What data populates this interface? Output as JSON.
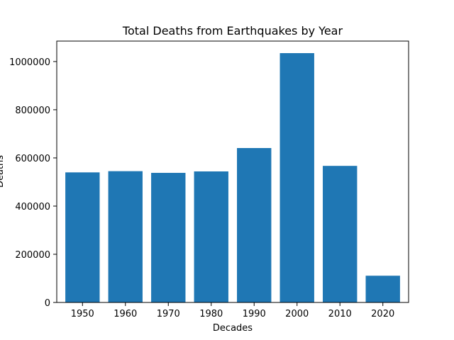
{
  "chart_data": {
    "type": "bar",
    "title": "Total Deaths from Earthquakes by Year",
    "xlabel": "Decades",
    "ylabel": "Deaths",
    "categories": [
      "1950",
      "1960",
      "1970",
      "1980",
      "1990",
      "2000",
      "2010",
      "2020"
    ],
    "values": [
      540000,
      545000,
      538000,
      544000,
      641000,
      1035000,
      567000,
      111000
    ],
    "ylim": [
      0,
      1085000
    ],
    "yticks": [
      0,
      200000,
      400000,
      600000,
      800000,
      1000000
    ],
    "ytick_labels": [
      "0",
      "200000",
      "400000",
      "600000",
      "800000",
      "1000000"
    ],
    "bar_color": "#1f77b4",
    "grid": false
  }
}
